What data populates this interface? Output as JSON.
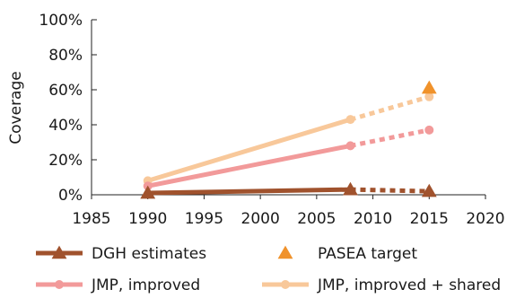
{
  "chart_data": {
    "type": "line",
    "title": "",
    "xlabel": "",
    "ylabel": "Coverage",
    "xlim": [
      1985,
      2020
    ],
    "ylim": [
      0,
      100
    ],
    "x_ticks": [
      1985,
      1990,
      1995,
      2000,
      2005,
      2010,
      2015,
      2020
    ],
    "y_ticks": [
      0,
      20,
      40,
      60,
      80,
      100
    ],
    "y_tick_labels": [
      "0%",
      "20%",
      "40%",
      "60%",
      "80%",
      "100%"
    ],
    "grid": false,
    "legend_position": "bottom",
    "series": [
      {
        "name": "DGH estimates",
        "color": "#a0522d",
        "marker": "triangle",
        "solid": [
          {
            "x": 1990,
            "y": 1
          },
          {
            "x": 2008,
            "y": 3
          }
        ],
        "dotted": [
          {
            "x": 2008,
            "y": 3
          },
          {
            "x": 2015,
            "y": 2
          }
        ]
      },
      {
        "name": "PASEA target",
        "color": "#f0922b",
        "marker": "triangle",
        "points": [
          {
            "x": 2015,
            "y": 61
          }
        ]
      },
      {
        "name": "JMP, improved",
        "color": "#f29a9a",
        "marker": "circle",
        "solid": [
          {
            "x": 1990,
            "y": 5
          },
          {
            "x": 2008,
            "y": 28
          }
        ],
        "dotted": [
          {
            "x": 2008,
            "y": 28
          },
          {
            "x": 2015,
            "y": 37
          }
        ]
      },
      {
        "name": "JMP, improved + shared",
        "color": "#f8c89a",
        "marker": "circle",
        "solid": [
          {
            "x": 1990,
            "y": 8
          },
          {
            "x": 2008,
            "y": 43
          }
        ],
        "dotted": [
          {
            "x": 2008,
            "y": 43
          },
          {
            "x": 2015,
            "y": 56
          }
        ]
      }
    ]
  }
}
